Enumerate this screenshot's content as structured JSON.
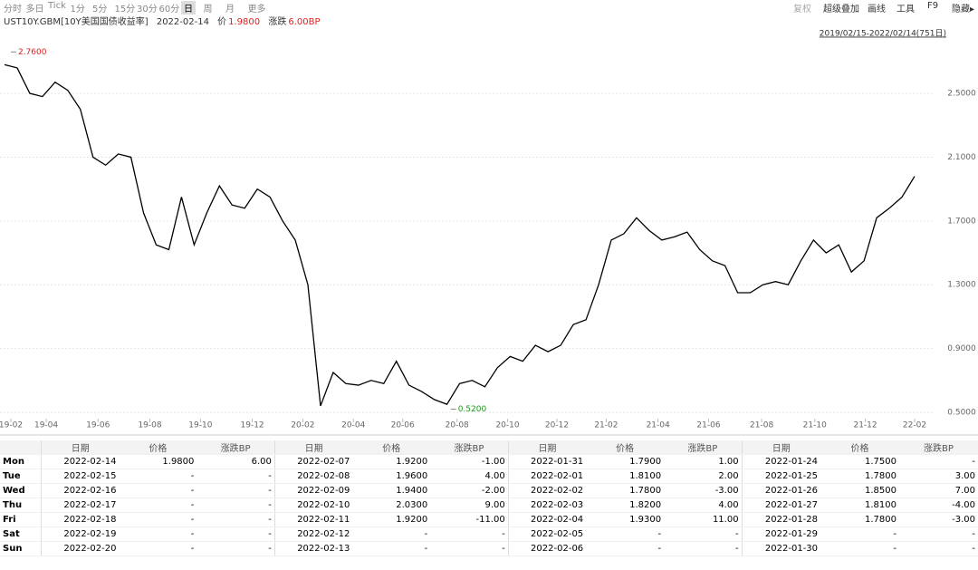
{
  "toolbar": {
    "left": [
      "分时",
      "多日",
      "Tick",
      "1分",
      "5分",
      "15分",
      "30分",
      "60分",
      "日",
      "周",
      "月",
      "更多"
    ],
    "active": 8,
    "right": [
      "复权",
      "超级叠加",
      "画线",
      "工具",
      "F9",
      "隐藏▸"
    ]
  },
  "header": {
    "symbol": "UST10Y.GBM[10Y美国国债收益率]",
    "date": "2022-02-14",
    "price_label": "价",
    "price": "1.9800",
    "change_label": "涨跌",
    "change": "6.00BP"
  },
  "chart_data": {
    "type": "line",
    "range_label": "2019/02/15-2022/02/14(751日)",
    "series": [
      {
        "color": "#000000",
        "values": [
          2.68,
          2.66,
          2.5,
          2.48,
          2.57,
          2.52,
          2.4,
          2.1,
          2.05,
          2.12,
          2.1,
          1.75,
          1.55,
          1.52,
          1.85,
          1.55,
          1.75,
          1.92,
          1.8,
          1.78,
          1.9,
          1.85,
          1.7,
          1.58,
          1.3,
          0.54,
          0.75,
          0.68,
          0.67,
          0.7,
          0.68,
          0.82,
          0.67,
          0.63,
          0.58,
          0.55,
          0.68,
          0.7,
          0.66,
          0.78,
          0.85,
          0.82,
          0.92,
          0.88,
          0.92,
          1.05,
          1.08,
          1.3,
          1.58,
          1.62,
          1.72,
          1.64,
          1.58,
          1.6,
          1.63,
          1.52,
          1.45,
          1.42,
          1.25,
          1.25,
          1.3,
          1.32,
          1.3,
          1.45,
          1.58,
          1.5,
          1.55,
          1.38,
          1.45,
          1.72,
          1.78,
          1.85,
          1.98
        ]
      }
    ],
    "xlim": [
      0,
      72
    ],
    "xticks": [
      {
        "value": 0.5,
        "label": "19-02"
      },
      {
        "value": 3.3,
        "label": "19-04"
      },
      {
        "value": 7.4,
        "label": "19-06"
      },
      {
        "value": 11.5,
        "label": "19-08"
      },
      {
        "value": 15.5,
        "label": "19-10"
      },
      {
        "value": 19.6,
        "label": "19-12"
      },
      {
        "value": 23.6,
        "label": "20-02"
      },
      {
        "value": 27.6,
        "label": "20-04"
      },
      {
        "value": 31.5,
        "label": "20-06"
      },
      {
        "value": 35.8,
        "label": "20-08"
      },
      {
        "value": 39.8,
        "label": "20-10"
      },
      {
        "value": 43.7,
        "label": "20-12"
      },
      {
        "value": 47.6,
        "label": "21-02"
      },
      {
        "value": 51.7,
        "label": "21-04"
      },
      {
        "value": 55.7,
        "label": "21-06"
      },
      {
        "value": 59.9,
        "label": "21-08"
      },
      {
        "value": 64.1,
        "label": "21-10"
      },
      {
        "value": 68.1,
        "label": "21-12"
      },
      {
        "value": 72,
        "label": "22-02"
      }
    ],
    "ylim": [
      0.46,
      2.83
    ],
    "yticks": [
      {
        "value": 0.5,
        "label": "0.5000"
      },
      {
        "value": 0.9,
        "label": "0.9000"
      },
      {
        "value": 1.3,
        "label": "1.3000"
      },
      {
        "value": 1.7,
        "label": "1.7000"
      },
      {
        "value": 2.1,
        "label": "2.1000"
      },
      {
        "value": 2.5,
        "label": "2.5000"
      }
    ],
    "grid": true,
    "annotations": [
      {
        "x": 0.5,
        "y": 2.76,
        "label": "2.7600",
        "color": "#e02020"
      },
      {
        "x": 35.3,
        "y": 0.52,
        "label": "0.5200",
        "color": "#1a9a1a"
      }
    ]
  },
  "table": {
    "headers": [
      "日期",
      "价格",
      "涨跌BP",
      "日期",
      "价格",
      "涨跌BP",
      "日期",
      "价格",
      "涨跌BP",
      "日期",
      "价格",
      "涨跌BP"
    ],
    "rows": [
      [
        "Mon",
        "2022-02-14",
        "1.9800",
        "6.00",
        "2022-02-07",
        "1.9200",
        "-1.00",
        "2022-01-31",
        "1.7900",
        "1.00",
        "2022-01-24",
        "1.7500",
        "-"
      ],
      [
        "Tue",
        "2022-02-15",
        "-",
        "-",
        "2022-02-08",
        "1.9600",
        "4.00",
        "2022-02-01",
        "1.8100",
        "2.00",
        "2022-01-25",
        "1.7800",
        "3.00"
      ],
      [
        "Wed",
        "2022-02-16",
        "-",
        "-",
        "2022-02-09",
        "1.9400",
        "-2.00",
        "2022-02-02",
        "1.7800",
        "-3.00",
        "2022-01-26",
        "1.8500",
        "7.00"
      ],
      [
        "Thu",
        "2022-02-17",
        "-",
        "-",
        "2022-02-10",
        "2.0300",
        "9.00",
        "2022-02-03",
        "1.8200",
        "4.00",
        "2022-01-27",
        "1.8100",
        "-4.00"
      ],
      [
        "Fri",
        "2022-02-18",
        "-",
        "-",
        "2022-02-11",
        "1.9200",
        "-11.00",
        "2022-02-04",
        "1.9300",
        "11.00",
        "2022-01-28",
        "1.7800",
        "-3.00"
      ],
      [
        "Sat",
        "2022-02-19",
        "-",
        "-",
        "2022-02-12",
        "-",
        "-",
        "2022-02-05",
        "-",
        "-",
        "2022-01-29",
        "-",
        "-"
      ],
      [
        "Sun",
        "2022-02-20",
        "-",
        "-",
        "2022-02-13",
        "-",
        "-",
        "2022-02-06",
        "-",
        "-",
        "2022-01-30",
        "-",
        "-"
      ]
    ]
  }
}
